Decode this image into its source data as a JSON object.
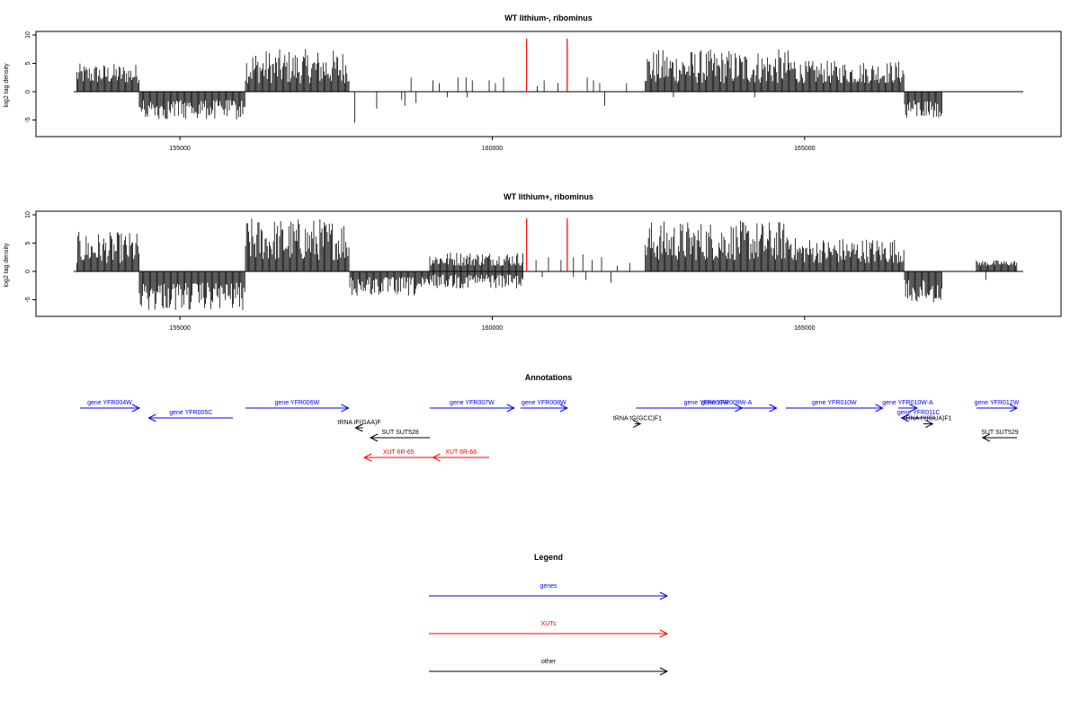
{
  "chart_data": [
    {
      "type": "bar",
      "title": "WT lithium-, ribominus",
      "ylabel": "log2 tag density",
      "xlabel": "",
      "xlim": [
        153300,
        168500
      ],
      "ylim": [
        -7.5,
        10
      ],
      "yticks": [
        -5,
        0,
        5,
        10
      ],
      "xticks": [
        155000,
        160000,
        165000
      ],
      "plus_strand_segments": [
        {
          "start": 153350,
          "end": 154350,
          "min": 1.5,
          "max": 5
        },
        {
          "start": 156050,
          "end": 157720,
          "min": 1.5,
          "max": 7.5
        },
        {
          "start": 162450,
          "end": 164850,
          "min": 1.5,
          "max": 7.5
        },
        {
          "start": 164850,
          "end": 166600,
          "min": 1.5,
          "max": 5.5
        }
      ],
      "minus_strand_segments": [
        {
          "start": 154350,
          "end": 156050,
          "min": 1.5,
          "max": 5
        },
        {
          "start": 166600,
          "end": 167200,
          "min": 1.5,
          "max": 5
        }
      ],
      "sparse_plus": [
        [
          158700,
          2.5
        ],
        [
          159050,
          2
        ],
        [
          159150,
          1.5
        ],
        [
          159450,
          2.5
        ],
        [
          159580,
          2.5
        ],
        [
          159680,
          2
        ],
        [
          159950,
          2
        ],
        [
          160050,
          1.5
        ],
        [
          160180,
          2.5
        ],
        [
          160720,
          1
        ],
        [
          160830,
          2
        ],
        [
          161050,
          1.5
        ],
        [
          161520,
          2.5
        ],
        [
          161620,
          2
        ],
        [
          161720,
          1.5
        ],
        [
          162150,
          1.5
        ]
      ],
      "sparse_minus": [
        [
          157800,
          5.5
        ],
        [
          158150,
          3
        ],
        [
          158550,
          1.5
        ],
        [
          158600,
          2.5
        ],
        [
          158780,
          2
        ],
        [
          159280,
          1
        ],
        [
          159600,
          1
        ],
        [
          161800,
          2.5
        ],
        [
          162900,
          1
        ],
        [
          164200,
          1
        ]
      ],
      "highlights": [
        160550,
        161200
      ]
    },
    {
      "type": "bar",
      "title": "WT lithium+, ribominus",
      "ylabel": "log2 tag density",
      "xlabel": "",
      "xlim": [
        153300,
        168500
      ],
      "ylim": [
        -7.5,
        10
      ],
      "yticks": [
        -5,
        0,
        5,
        10
      ],
      "xticks": [
        155000,
        160000,
        165000
      ],
      "plus_strand_segments": [
        {
          "start": 153350,
          "end": 154350,
          "min": 1.5,
          "max": 7
        },
        {
          "start": 156050,
          "end": 157720,
          "min": 2,
          "max": 9.5
        },
        {
          "start": 159000,
          "end": 160500,
          "min": 1,
          "max": 3.5
        },
        {
          "start": 162450,
          "end": 164850,
          "min": 2,
          "max": 9
        },
        {
          "start": 164850,
          "end": 166600,
          "min": 1.5,
          "max": 6
        },
        {
          "start": 167750,
          "end": 168400,
          "min": 1,
          "max": 2
        }
      ],
      "minus_strand_segments": [
        {
          "start": 154350,
          "end": 156050,
          "min": 2,
          "max": 7
        },
        {
          "start": 157720,
          "end": 159000,
          "min": 1,
          "max": 4.5
        },
        {
          "start": 159000,
          "end": 160500,
          "min": 0.5,
          "max": 3
        },
        {
          "start": 166600,
          "end": 167200,
          "min": 1.5,
          "max": 6
        }
      ],
      "sparse_plus": [
        [
          160700,
          2
        ],
        [
          160900,
          2.5
        ],
        [
          161100,
          2
        ],
        [
          161300,
          2.5
        ],
        [
          161450,
          3
        ],
        [
          161600,
          2
        ],
        [
          161750,
          2.5
        ],
        [
          162000,
          1
        ],
        [
          162200,
          1.5
        ]
      ],
      "sparse_minus": [
        [
          160800,
          1
        ],
        [
          161300,
          1
        ],
        [
          161500,
          1.5
        ],
        [
          161900,
          2
        ],
        [
          167900,
          1.5
        ]
      ],
      "highlights": [
        160550,
        161200
      ]
    }
  ],
  "annotations": {
    "title": "Annotations",
    "features": [
      {
        "label": "gene YFR004W",
        "color": "#0000ff",
        "start": 153400,
        "end": 154350,
        "row": 0,
        "dir": "right"
      },
      {
        "label": "gene YFR005C",
        "color": "#0000ff",
        "start": 154500,
        "end": 155850,
        "row": 1,
        "dir": "left"
      },
      {
        "label": "gene YFR006W",
        "color": "#0000ff",
        "start": 156050,
        "end": 157700,
        "row": 0,
        "dir": "right"
      },
      {
        "label": "gene YFR007W",
        "color": "#0000ff",
        "start": 159000,
        "end": 160350,
        "row": 0,
        "dir": "right"
      },
      {
        "label": "gene YFR008W",
        "color": "#0000ff",
        "start": 160450,
        "end": 161200,
        "row": 0,
        "dir": "right"
      },
      {
        "label": "gene YFR009W",
        "color": "#0000ff",
        "start": 162300,
        "end": 164550,
        "row": 0,
        "dir": "right"
      },
      {
        "label": "gene YFR009W-A",
        "color": "#0000ff",
        "start": 163500,
        "end": 164000,
        "row": 0,
        "dir": "right"
      },
      {
        "label": "gene YFR010W",
        "color": "#0000ff",
        "start": 164700,
        "end": 166250,
        "row": 0,
        "dir": "right"
      },
      {
        "label": "gene YFR010W-A",
        "color": "#0000ff",
        "start": 166500,
        "end": 166800,
        "row": 0,
        "dir": "right"
      },
      {
        "label": "gene YFR011C",
        "color": "#0000ff",
        "start": 166550,
        "end": 167100,
        "row": 1,
        "dir": "left"
      },
      {
        "label": "gene YFR012W",
        "color": "#0000ff",
        "start": 167750,
        "end": 168400,
        "row": 0,
        "dir": "right"
      },
      {
        "label": "tRNA tF(GAA)F",
        "color": "#000000",
        "start": 157810,
        "end": 157930,
        "row": 2,
        "dir": "left"
      },
      {
        "label": "tRNA tG(GCC)F1",
        "color": "#000000",
        "start": 162280,
        "end": 162370,
        "row": 1.6,
        "dir": "right"
      },
      {
        "label": "tRNA tY(GUA)F1",
        "color": "#000000",
        "start": 166900,
        "end": 167050,
        "row": 1.6,
        "dir": "right"
      },
      {
        "label": "SUT SUT528",
        "color": "#000000",
        "start": 158050,
        "end": 159000,
        "row": 3,
        "dir": "left"
      },
      {
        "label": "SUT SUT529",
        "color": "#000000",
        "start": 167850,
        "end": 168400,
        "row": 3,
        "dir": "left"
      },
      {
        "label": "XUT 6R-65",
        "color": "#ff0000",
        "start": 157950,
        "end": 159050,
        "row": 5,
        "dir": "left"
      },
      {
        "label": "XUT 6R-66",
        "color": "#ff0000",
        "start": 159050,
        "end": 159950,
        "row": 5,
        "dir": "left"
      }
    ]
  },
  "legend": {
    "title": "Legend",
    "items": [
      {
        "label": "genes",
        "color": "#0000ff"
      },
      {
        "label": "XUTs",
        "color": "#ff0000"
      },
      {
        "label": "other",
        "color": "#000000"
      }
    ]
  }
}
